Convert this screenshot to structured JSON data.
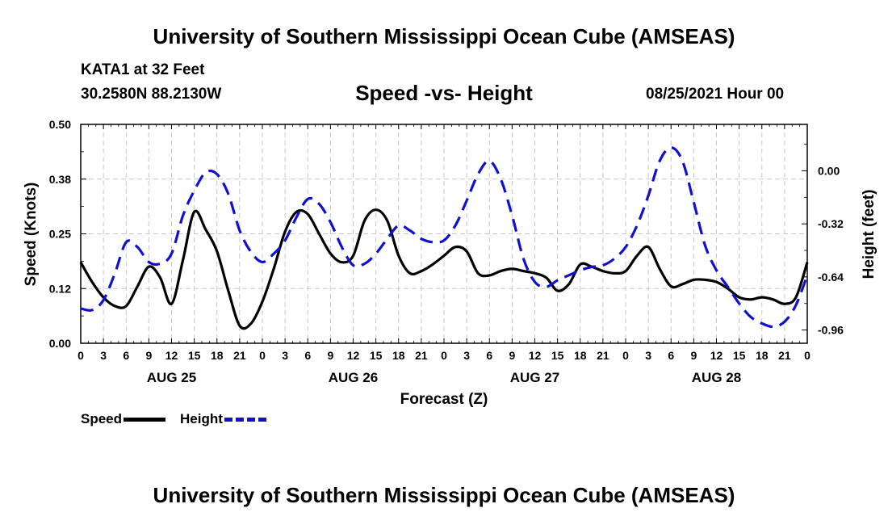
{
  "header": {
    "main_title": "University of Southern Mississippi Ocean Cube (AMSEAS)",
    "footer_title": "University of Southern Mississippi Ocean Cube (AMSEAS)",
    "station": "KATA1 at 32 Feet",
    "coords": "30.2580N  88.2130W",
    "timestamp": "08/25/2021 Hour 00"
  },
  "legend": {
    "speed_label": "Speed",
    "height_label": "Height"
  },
  "colors": {
    "speed": "#000000",
    "height": "#1010d0",
    "grid": "#c8c8c8"
  },
  "chart_data": {
    "type": "line",
    "title": "Speed -vs- Height",
    "xlabel": "Forecast (Z)",
    "ylabel": "Speed (Knots)",
    "y2label": "Height (feet)",
    "x_unit": "forecast hours",
    "xlim": [
      0,
      96
    ],
    "ylim": [
      0,
      0.5
    ],
    "y2lim": [
      -1.04,
      0.28
    ],
    "y_ticks": [
      0.0,
      0.125,
      0.25,
      0.375,
      0.5
    ],
    "y_tick_labels": [
      "0.00",
      "0.12",
      "0.25",
      "0.38",
      "0.50"
    ],
    "y2_ticks": [
      0.0,
      -0.32,
      -0.64,
      -0.96
    ],
    "y2_tick_labels": [
      "0.00",
      "-0.32",
      "-0.64",
      "-0.96"
    ],
    "x_ticks": [
      0,
      3,
      6,
      9,
      12,
      15,
      18,
      21,
      24,
      27,
      30,
      33,
      36,
      39,
      42,
      45,
      48,
      51,
      54,
      57,
      60,
      63,
      66,
      69,
      72,
      75,
      78,
      81,
      84,
      87,
      90,
      93,
      96
    ],
    "x_tick_labels": [
      "0",
      "3",
      "6",
      "9",
      "12",
      "15",
      "18",
      "21",
      "0",
      "3",
      "6",
      "9",
      "12",
      "15",
      "18",
      "21",
      "0",
      "3",
      "6",
      "9",
      "12",
      "15",
      "18",
      "21",
      "0",
      "3",
      "6",
      "9",
      "12",
      "15",
      "18",
      "21",
      "0"
    ],
    "day_labels": [
      {
        "hour": 12,
        "label": "AUG 25"
      },
      {
        "hour": 36,
        "label": "AUG 26"
      },
      {
        "hour": 60,
        "label": "AUG 27"
      },
      {
        "hour": 84,
        "label": "AUG 28"
      }
    ],
    "grid": true,
    "series": [
      {
        "name": "Speed",
        "axis": "left",
        "style": "solid",
        "x": [
          0,
          1.5,
          3,
          4.5,
          6,
          7.5,
          9,
          10.5,
          12,
          13.5,
          15,
          16.5,
          18,
          19.5,
          21,
          22.5,
          24,
          25.5,
          27,
          28.5,
          30,
          31.5,
          33,
          34.5,
          36,
          37.5,
          39,
          40.5,
          42,
          43.5,
          45,
          46.5,
          48,
          49.5,
          51,
          52.5,
          54,
          55.5,
          57,
          58.5,
          60,
          61.5,
          63,
          64.5,
          66,
          67.5,
          69,
          70.5,
          72,
          73.5,
          75,
          76.5,
          78,
          79.5,
          81,
          82.5,
          84,
          85.5,
          87,
          88.5,
          90,
          91.5,
          93,
          94.5,
          96
        ],
        "values": [
          0.185,
          0.14,
          0.105,
          0.085,
          0.085,
          0.13,
          0.175,
          0.15,
          0.09,
          0.19,
          0.3,
          0.26,
          0.21,
          0.12,
          0.04,
          0.045,
          0.095,
          0.17,
          0.255,
          0.3,
          0.295,
          0.25,
          0.205,
          0.185,
          0.2,
          0.28,
          0.305,
          0.28,
          0.2,
          0.16,
          0.165,
          0.18,
          0.2,
          0.22,
          0.21,
          0.16,
          0.155,
          0.165,
          0.17,
          0.165,
          0.16,
          0.15,
          0.12,
          0.135,
          0.18,
          0.175,
          0.165,
          0.16,
          0.165,
          0.2,
          0.22,
          0.17,
          0.13,
          0.135,
          0.145,
          0.145,
          0.14,
          0.125,
          0.105,
          0.1,
          0.105,
          0.1,
          0.09,
          0.105,
          0.185
        ]
      },
      {
        "name": "Height",
        "axis": "right",
        "style": "dashed",
        "x": [
          0,
          1.5,
          3,
          4.5,
          6,
          7.5,
          9,
          10.5,
          12,
          13.5,
          15,
          16.5,
          18,
          19.5,
          21,
          22.5,
          24,
          25.5,
          27,
          28.5,
          30,
          31.5,
          33,
          34.5,
          36,
          37.5,
          39,
          40.5,
          42,
          43.5,
          45,
          46.5,
          48,
          49.5,
          51,
          52.5,
          54,
          55.5,
          57,
          58.5,
          60,
          61.5,
          63,
          64.5,
          66,
          67.5,
          69,
          70.5,
          72,
          73.5,
          75,
          76.5,
          78,
          79.5,
          81,
          82.5,
          84,
          85.5,
          87,
          88.5,
          90,
          91.5,
          93,
          94.5,
          96
        ],
        "values": [
          -0.83,
          -0.84,
          -0.78,
          -0.62,
          -0.43,
          -0.46,
          -0.55,
          -0.56,
          -0.5,
          -0.27,
          -0.12,
          -0.01,
          -0.02,
          -0.14,
          -0.36,
          -0.49,
          -0.55,
          -0.5,
          -0.42,
          -0.28,
          -0.17,
          -0.2,
          -0.31,
          -0.46,
          -0.57,
          -0.56,
          -0.5,
          -0.41,
          -0.33,
          -0.36,
          -0.41,
          -0.43,
          -0.42,
          -0.33,
          -0.18,
          -0.02,
          0.06,
          -0.05,
          -0.27,
          -0.53,
          -0.67,
          -0.7,
          -0.66,
          -0.63,
          -0.6,
          -0.58,
          -0.57,
          -0.53,
          -0.46,
          -0.33,
          -0.15,
          0.06,
          0.14,
          0.06,
          -0.19,
          -0.45,
          -0.6,
          -0.7,
          -0.8,
          -0.88,
          -0.92,
          -0.94,
          -0.91,
          -0.81,
          -0.63
        ]
      }
    ]
  }
}
